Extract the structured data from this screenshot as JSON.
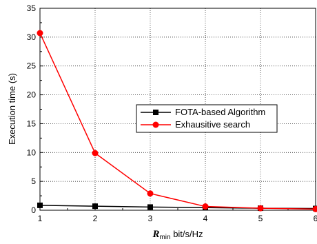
{
  "chart_data": {
    "type": "line",
    "x": [
      1,
      2,
      3,
      4,
      5,
      6
    ],
    "xlim": [
      1,
      6
    ],
    "ylim": [
      0,
      35
    ],
    "xticks": [
      "1",
      "2",
      "3",
      "4",
      "5",
      "6"
    ],
    "yticks": [
      "0",
      "5",
      "10",
      "15",
      "20",
      "25",
      "30",
      "35"
    ],
    "xlabel_main": "R",
    "xlabel_sub": "min",
    "xlabel_rest": " bit/s/Hz",
    "ylabel": "Execution time (s)",
    "grid": true,
    "legend_position": "right-middle",
    "series": [
      {
        "name": "FOTA-based Algorithm",
        "values": [
          0.85,
          0.7,
          0.55,
          0.45,
          0.35,
          0.3
        ],
        "color": "#000000",
        "marker": "square"
      },
      {
        "name": "Exhausitive search",
        "values": [
          30.7,
          9.9,
          2.9,
          0.65,
          0.35,
          0.2
        ],
        "color": "#ff0000",
        "marker": "circle"
      }
    ]
  }
}
